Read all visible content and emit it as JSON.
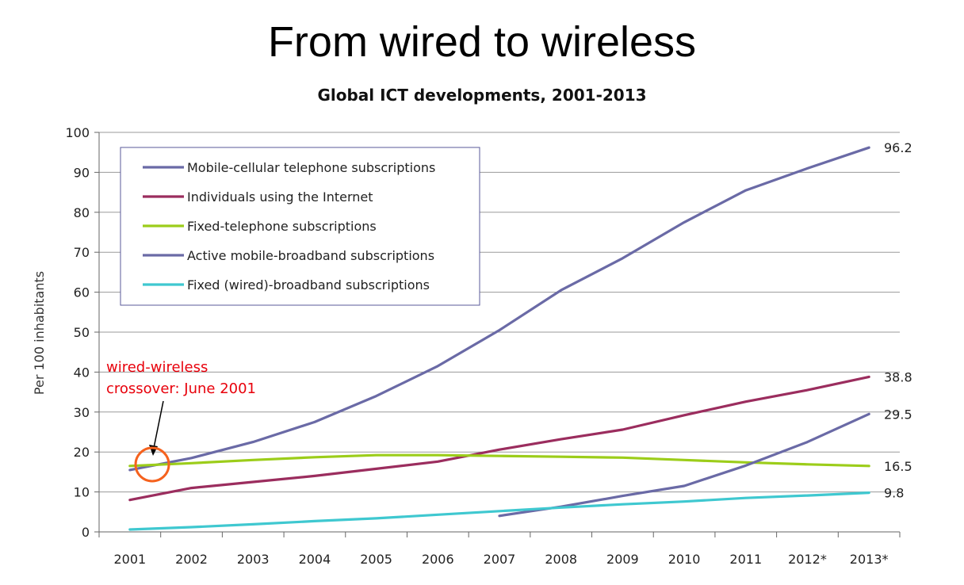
{
  "slide": {
    "title": "From wired to wireless"
  },
  "annotation": {
    "lines": [
      "wired-wireless",
      "crossover: June 2001"
    ],
    "color": "#e8000b",
    "circle_color": "#f5621e"
  },
  "chart_data": {
    "type": "line",
    "title": "Global ICT developments, 2001-2013",
    "xlabel": "",
    "ylabel": "Per 100 inhabitants",
    "ylim": [
      0,
      100
    ],
    "yticks": [
      0,
      10,
      20,
      30,
      40,
      50,
      60,
      70,
      80,
      90,
      100
    ],
    "categories": [
      "2001",
      "2002",
      "2003",
      "2004",
      "2005",
      "2006",
      "2007",
      "2008",
      "2009",
      "2010",
      "2011",
      "2012*",
      "2013*"
    ],
    "grid": true,
    "legend_position": "top-left",
    "series": [
      {
        "name": "Mobile-cellular telephone subscriptions",
        "color": "#6a6aa6",
        "values": [
          15.5,
          18.5,
          22.5,
          27.5,
          34.0,
          41.5,
          50.5,
          60.5,
          68.5,
          77.5,
          85.5,
          91.0,
          96.2
        ],
        "end_label": "96.2"
      },
      {
        "name": "Individuals using the Internet",
        "color": "#9b2d5e",
        "values": [
          8.0,
          11.0,
          12.5,
          14.0,
          15.8,
          17.6,
          20.6,
          23.2,
          25.6,
          29.2,
          32.6,
          35.5,
          38.8
        ],
        "end_label": "38.8"
      },
      {
        "name": "Fixed-telephone subscriptions",
        "color": "#9ccd1a",
        "values": [
          16.5,
          17.2,
          18.0,
          18.7,
          19.2,
          19.2,
          19.0,
          18.8,
          18.6,
          18.0,
          17.4,
          16.9,
          16.5
        ],
        "end_label": "16.5"
      },
      {
        "name": "Active mobile-broadband subscriptions",
        "color": "#6a6aa6",
        "values": [
          null,
          null,
          null,
          null,
          null,
          null,
          4.0,
          6.3,
          9.0,
          11.5,
          16.6,
          22.5,
          29.5
        ],
        "end_label": "29.5"
      },
      {
        "name": "Fixed (wired)-broadband subscriptions",
        "color": "#3fc8d0",
        "values": [
          0.6,
          1.2,
          1.9,
          2.7,
          3.4,
          4.3,
          5.2,
          6.1,
          6.9,
          7.6,
          8.5,
          9.1,
          9.8
        ],
        "end_label": "9.8"
      }
    ]
  }
}
